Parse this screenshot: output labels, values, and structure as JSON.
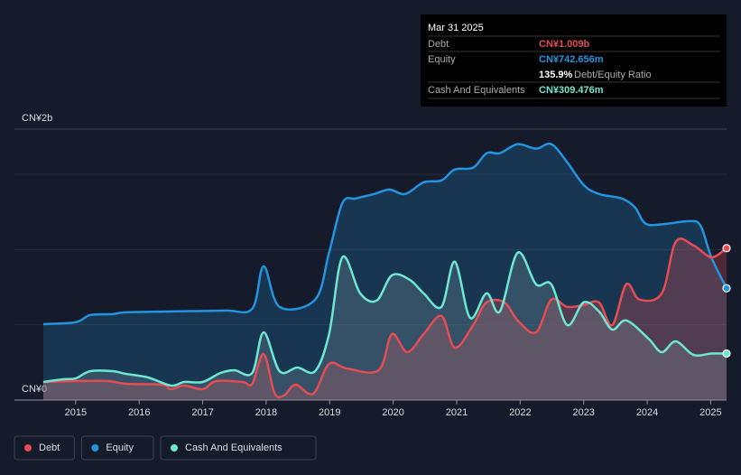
{
  "chart_data": {
    "type": "line",
    "xlim": [
      2014.49,
      2025.25
    ],
    "xticks": [
      2015,
      2016,
      2017,
      2018,
      2019,
      2020,
      2021,
      2022,
      2023,
      2024,
      2025
    ],
    "ylim": [
      0,
      1.8
    ],
    "yticks": [
      {
        "value": 0,
        "label": "CN¥0"
      },
      {
        "value": 1.8,
        "label": "CN¥2b"
      }
    ],
    "gridlines": [
      0.5,
      1,
      1.5
    ],
    "legend": "bottom-left",
    "series": [
      {
        "name": "Equity",
        "color": "#2394df",
        "x": [
          2014.49,
          2015.0,
          2015.23,
          2015.58,
          2015.79,
          2016.5,
          2017.35,
          2017.78,
          2017.96,
          2018.21,
          2018.77,
          2018.99,
          2019.2,
          2019.41,
          2019.7,
          2019.94,
          2020.19,
          2020.48,
          2020.76,
          2020.97,
          2021.26,
          2021.47,
          2021.68,
          2021.96,
          2022.25,
          2022.49,
          2022.74,
          2023.0,
          2023.24,
          2023.6,
          2023.81,
          2023.98,
          2024.3,
          2024.66,
          2024.84,
          2025.01,
          2025.25
        ],
        "values": [
          0.505,
          0.517,
          0.565,
          0.571,
          0.583,
          0.589,
          0.595,
          0.607,
          0.889,
          0.619,
          0.667,
          0.979,
          1.309,
          1.339,
          1.369,
          1.399,
          1.369,
          1.447,
          1.459,
          1.532,
          1.544,
          1.64,
          1.64,
          1.7,
          1.67,
          1.7,
          1.58,
          1.429,
          1.369,
          1.339,
          1.279,
          1.171,
          1.171,
          1.189,
          1.159,
          0.949,
          0.743
        ]
      },
      {
        "name": "Debt",
        "color": "#e64c54",
        "x": [
          2014.49,
          2015.0,
          2015.51,
          2015.79,
          2016.36,
          2016.5,
          2016.71,
          2017.0,
          2017.21,
          2017.63,
          2017.78,
          2017.96,
          2018.13,
          2018.28,
          2018.46,
          2018.74,
          2018.99,
          2019.27,
          2019.77,
          2019.98,
          2020.22,
          2020.48,
          2020.76,
          2020.97,
          2021.26,
          2021.47,
          2021.75,
          2021.96,
          2022.25,
          2022.49,
          2022.74,
          2023.0,
          2023.24,
          2023.45,
          2023.67,
          2023.88,
          2024.23,
          2024.45,
          2024.73,
          2025.01,
          2025.25
        ],
        "values": [
          0.12,
          0.126,
          0.126,
          0.108,
          0.102,
          0.072,
          0.096,
          0.072,
          0.126,
          0.12,
          0.108,
          0.306,
          0.048,
          0.03,
          0.102,
          0.042,
          0.24,
          0.21,
          0.198,
          0.438,
          0.318,
          0.438,
          0.559,
          0.348,
          0.498,
          0.649,
          0.649,
          0.529,
          0.45,
          0.667,
          0.619,
          0.631,
          0.649,
          0.498,
          0.769,
          0.667,
          0.709,
          1.051,
          1.027,
          0.949,
          1.009
        ]
      },
      {
        "name": "Cash And Equivalents",
        "color": "#6ee7d2",
        "x": [
          2014.49,
          2014.8,
          2015.0,
          2015.23,
          2015.58,
          2015.79,
          2016.14,
          2016.5,
          2016.71,
          2017.0,
          2017.28,
          2017.5,
          2017.78,
          2017.96,
          2018.21,
          2018.49,
          2018.77,
          2018.99,
          2019.2,
          2019.48,
          2019.74,
          2019.98,
          2020.26,
          2020.48,
          2020.76,
          2020.97,
          2021.21,
          2021.47,
          2021.68,
          2021.96,
          2022.25,
          2022.49,
          2022.74,
          2023.0,
          2023.24,
          2023.45,
          2023.67,
          2024.02,
          2024.23,
          2024.45,
          2024.73,
          2025.01,
          2025.25
        ],
        "values": [
          0.12,
          0.138,
          0.144,
          0.192,
          0.192,
          0.174,
          0.15,
          0.096,
          0.12,
          0.12,
          0.18,
          0.198,
          0.18,
          0.45,
          0.192,
          0.216,
          0.192,
          0.438,
          0.949,
          0.709,
          0.661,
          0.829,
          0.799,
          0.709,
          0.619,
          0.919,
          0.547,
          0.709,
          0.589,
          0.979,
          0.769,
          0.769,
          0.498,
          0.649,
          0.589,
          0.468,
          0.529,
          0.408,
          0.318,
          0.39,
          0.3,
          0.309,
          0.309
        ]
      }
    ],
    "tooltip": {
      "date": "Mar 31 2025",
      "rows": [
        {
          "label": "Debt",
          "value_label": "CN¥1.009b"
        },
        {
          "label": "Equity",
          "value_label": "CN¥742.656m"
        },
        {
          "label": "Debt/Equity Ratio",
          "value_label": "135.9%"
        },
        {
          "label": "Cash And Equivalents",
          "value_label": "CN¥309.476m"
        }
      ]
    }
  }
}
